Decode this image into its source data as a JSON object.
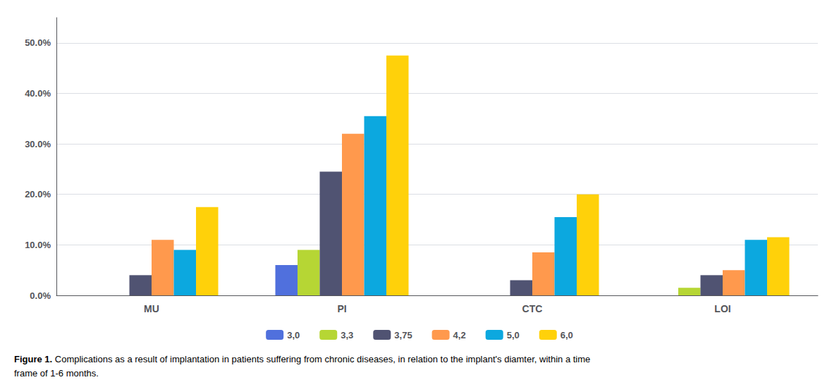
{
  "chart_data": {
    "type": "bar",
    "categories": [
      "MU",
      "PI",
      "CTC",
      "LOI"
    ],
    "series": [
      {
        "name": "3,0",
        "values": [
          0.0,
          0.06,
          0.0,
          0.0
        ]
      },
      {
        "name": "3,3",
        "values": [
          0.0,
          0.09,
          0.0,
          0.015
        ]
      },
      {
        "name": "3,75",
        "values": [
          0.04,
          0.245,
          0.03,
          0.04
        ]
      },
      {
        "name": "4,2",
        "values": [
          0.11,
          0.32,
          0.085,
          0.05
        ]
      },
      {
        "name": "5,0",
        "values": [
          0.09,
          0.355,
          0.155,
          0.11
        ]
      },
      {
        "name": "6,0",
        "values": [
          0.175,
          0.475,
          0.2,
          0.115
        ]
      }
    ],
    "ylim": [
      0,
      0.55
    ],
    "yticks": [
      {
        "value": 0.0,
        "label": "0.0%"
      },
      {
        "value": 0.1,
        "label": "10.0%"
      },
      {
        "value": 0.2,
        "label": "20.0%"
      },
      {
        "value": 0.3,
        "label": "30.0%"
      },
      {
        "value": 0.4,
        "label": "40.0%"
      },
      {
        "value": 0.5,
        "label": "50.0%"
      }
    ],
    "grid": true,
    "legend": "bottom",
    "annotations": [
      "Figure 1.",
      " Complications as a result of implantation in patients suffering from chronic diseases, in relation to the implant's diamter, within a time",
      "frame of 1-6 months."
    ]
  }
}
